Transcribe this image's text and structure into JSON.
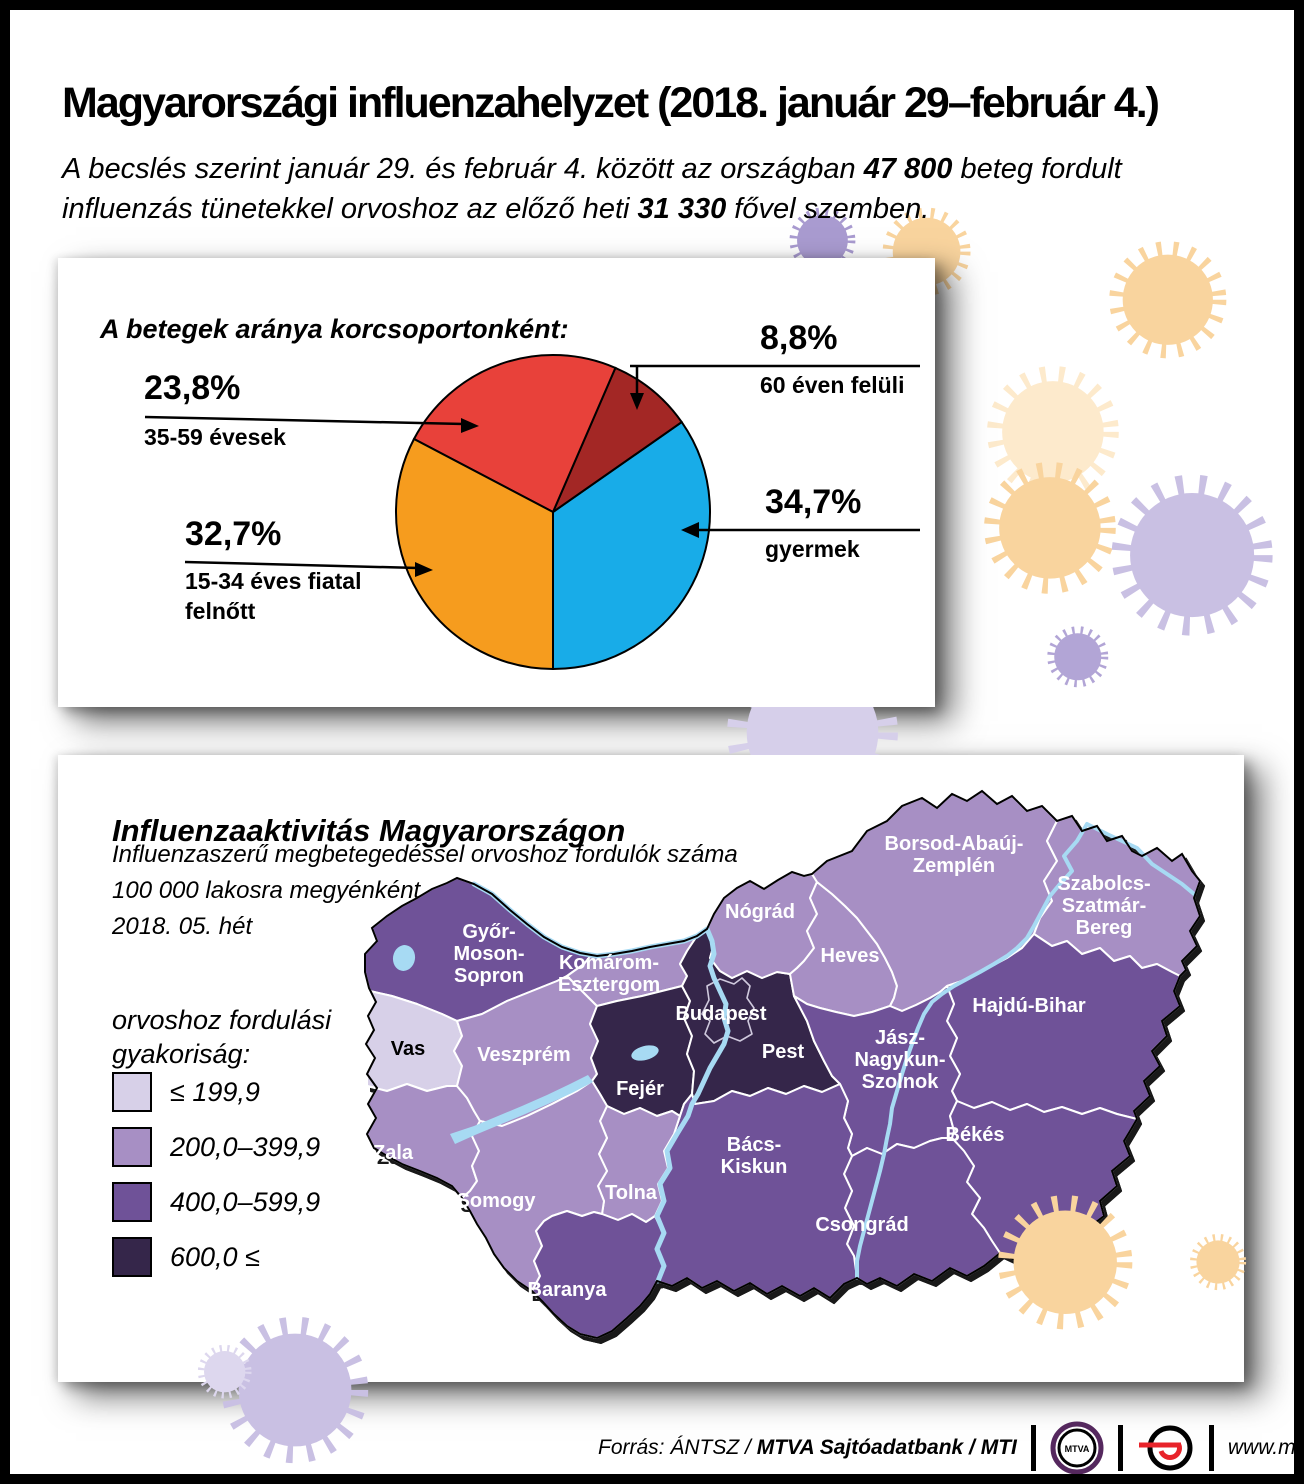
{
  "header": {
    "title": "Magyarországi influenzahelyzet (2018. január 29–február 4.)",
    "lead": {
      "pre": "A becslés szerint január 29. és február 4. között az országban",
      "bold1": "47 800",
      "mid": "beteg fordult influenzás tünetekkel orvoshoz az előző heti",
      "bold2": "31 330",
      "post": "fővel szemben."
    }
  },
  "chart_data": {
    "type": "pie",
    "title": "A betegek aránya korcsoportonként:",
    "unit": "%",
    "start_angle_deg": 270,
    "direction": "ccw",
    "slices": [
      {
        "label": "gyermek",
        "value": 34.7,
        "display": "34,7%",
        "color": "#18ace8"
      },
      {
        "label": "60 éven felüli",
        "value": 8.8,
        "display": "8,8%",
        "color": "#a32725"
      },
      {
        "label": "35-59 évesek",
        "value": 23.8,
        "display": "23,8%",
        "color": "#e8413a"
      },
      {
        "label": "15-34 éves fiatal felnőtt",
        "value": 32.7,
        "display": "32,7%",
        "color": "#f69c1e"
      }
    ],
    "callouts": {
      "c35_59": {
        "pct": "23,8%",
        "label": "35-59 évesek"
      },
      "c60plus": {
        "pct": "8,8%",
        "label": "60 éven felüli"
      },
      "children": {
        "pct": "34,7%",
        "label": "gyermek"
      },
      "c15_34": {
        "pct": "32,7%",
        "label": "15-34 éves fiatal",
        "label2": "felnőtt"
      }
    }
  },
  "map": {
    "title": "Influenzaaktivitás Magyarországon",
    "subtitle_lines": [
      "Influenzaszerű megbetegedéssel orvoshoz fordulók száma",
      "100 000 lakosra megyénként",
      "2018. 05. hét"
    ],
    "legend_title_lines": [
      "orvoshoz fordulási",
      "gyakoriság:"
    ],
    "legend": [
      {
        "label": "≤ 199,9",
        "color": "#d7d0e8"
      },
      {
        "label": "200,0–399,9",
        "color": "#a78fc4"
      },
      {
        "label": "400,0–599,9",
        "color": "#6f5298"
      },
      {
        "label": "600,0 ≤",
        "color": "#35264a"
      }
    ],
    "water_color": "#a7daf3",
    "counties": [
      {
        "id": "gyms",
        "name": "Győr-Moson-Sopron",
        "label_lines": [
          "Győr-",
          "Moson-",
          "Sopron"
        ],
        "category": 2,
        "text_color": "#ffffff"
      },
      {
        "id": "vas",
        "name": "Vas",
        "label_lines": [
          "Vas"
        ],
        "category": 0,
        "text_color": "#000000"
      },
      {
        "id": "zala",
        "name": "Zala",
        "label_lines": [
          "Zala"
        ],
        "category": 1,
        "text_color": "#ffffff"
      },
      {
        "id": "veszprem",
        "name": "Veszprém",
        "label_lines": [
          "Veszprém"
        ],
        "category": 1,
        "text_color": "#ffffff"
      },
      {
        "id": "komarom",
        "name": "Komárom-Esztergom",
        "label_lines": [
          "Komárom-",
          "Esztergom"
        ],
        "category": 1,
        "text_color": "#ffffff"
      },
      {
        "id": "fejer",
        "name": "Fejér",
        "label_lines": [
          "Fejér"
        ],
        "category": 3,
        "text_color": "#ffffff"
      },
      {
        "id": "pest",
        "name": "Pest",
        "label_lines": [
          "Pest"
        ],
        "category": 3,
        "text_color": "#ffffff"
      },
      {
        "id": "budapest",
        "name": "Budapest",
        "label_lines": [
          "Budapest"
        ],
        "category": 3,
        "text_color": "#ffffff"
      },
      {
        "id": "nograd",
        "name": "Nógrád",
        "label_lines": [
          "Nógrád"
        ],
        "category": 1,
        "text_color": "#ffffff"
      },
      {
        "id": "heves",
        "name": "Heves",
        "label_lines": [
          "Heves"
        ],
        "category": 1,
        "text_color": "#ffffff"
      },
      {
        "id": "borsod",
        "name": "Borsod-Abaúj-Zemplén",
        "label_lines": [
          "Borsod-Abaúj-",
          "Zemplén"
        ],
        "category": 1,
        "text_color": "#ffffff"
      },
      {
        "id": "szabolcs",
        "name": "Szabolcs-Szatmár-Bereg",
        "label_lines": [
          "Szabolcs-",
          "Szatmár-",
          "Bereg"
        ],
        "category": 1,
        "text_color": "#ffffff"
      },
      {
        "id": "hajdu",
        "name": "Hajdú-Bihar",
        "label_lines": [
          "Hajdú-Bihar"
        ],
        "category": 2,
        "text_color": "#ffffff"
      },
      {
        "id": "jnsz",
        "name": "Jász-Nagykun-Szolnok",
        "label_lines": [
          "Jász-",
          "Nagykun-",
          "Szolnok"
        ],
        "category": 2,
        "text_color": "#ffffff"
      },
      {
        "id": "bekes",
        "name": "Békés",
        "label_lines": [
          "Békés"
        ],
        "category": 2,
        "text_color": "#ffffff"
      },
      {
        "id": "csongrad",
        "name": "Csongrád",
        "label_lines": [
          "Csongrád"
        ],
        "category": 2,
        "text_color": "#ffffff"
      },
      {
        "id": "bacs",
        "name": "Bács-Kiskun",
        "label_lines": [
          "Bács-",
          "Kiskun"
        ],
        "category": 2,
        "text_color": "#ffffff"
      },
      {
        "id": "tolna",
        "name": "Tolna",
        "label_lines": [
          "Tolna"
        ],
        "category": 1,
        "text_color": "#ffffff"
      },
      {
        "id": "somogy",
        "name": "Somogy",
        "label_lines": [
          "Somogy"
        ],
        "category": 1,
        "text_color": "#ffffff"
      },
      {
        "id": "baranya",
        "name": "Baranya",
        "label_lines": [
          "Baranya"
        ],
        "category": 2,
        "text_color": "#ffffff"
      }
    ]
  },
  "footer": {
    "source_prefix": "Forrás: ÁNTSZ /",
    "source_bold": "MTVA Sajtóadatbank / MTI",
    "mtva_text": "MTVA",
    "website": "www.mti.hu"
  }
}
